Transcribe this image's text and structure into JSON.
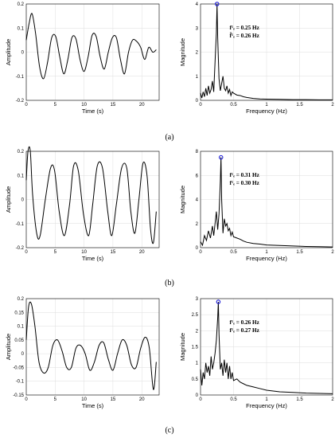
{
  "chart_data": [
    {
      "type": "line",
      "panel": "a-time",
      "xlabel": "Time (s)",
      "ylabel": "Amplitude",
      "xlim": [
        0,
        23
      ],
      "ylim": [
        -0.2,
        0.2
      ],
      "xticks": [
        "0",
        "5",
        "10",
        "15",
        "20"
      ],
      "yticks": [
        "-0.2",
        "-0.1",
        "0",
        "0.1",
        "0.2"
      ],
      "grid": true,
      "x": [
        0,
        0.5,
        1,
        1.6,
        2.3,
        3.0,
        3.7,
        4.4,
        5.1,
        5.8,
        6.5,
        7.2,
        7.9,
        8.6,
        9.3,
        10.0,
        10.7,
        11.4,
        12.1,
        12.8,
        13.5,
        14.2,
        14.9,
        15.6,
        16.3,
        17.0,
        17.7,
        18.4,
        19.1,
        19.8,
        20.5,
        21.2,
        21.9,
        22.5
      ],
      "y": [
        0.05,
        0.12,
        0.16,
        0.08,
        -0.06,
        -0.11,
        -0.04,
        0.06,
        0.065,
        -0.02,
        -0.09,
        -0.03,
        0.06,
        0.055,
        -0.03,
        -0.08,
        -0.02,
        0.07,
        0.065,
        -0.02,
        -0.07,
        0.0,
        0.06,
        0.06,
        -0.03,
        -0.09,
        0.0,
        0.05,
        0.045,
        0.02,
        -0.03,
        0.02,
        0.0,
        0.01
      ]
    },
    {
      "type": "line",
      "panel": "a-freq",
      "xlabel": "Frequency (Hz)",
      "ylabel": "Magnitude",
      "xlim": [
        0,
        2
      ],
      "ylim": [
        0,
        4
      ],
      "xticks": [
        "0",
        "0.5",
        "1",
        "1.5",
        "2"
      ],
      "yticks": [
        "0",
        "1",
        "2",
        "3",
        "4"
      ],
      "grid": true,
      "peak": {
        "x": 0.25,
        "y": 4.0
      },
      "annotations": [
        "f¹ₑ = 0.25 Hz",
        "f̃¹ₑ = 0.26 Hz"
      ],
      "x": [
        0,
        0.02,
        0.04,
        0.06,
        0.08,
        0.1,
        0.12,
        0.14,
        0.16,
        0.18,
        0.2,
        0.22,
        0.24,
        0.25,
        0.26,
        0.28,
        0.3,
        0.32,
        0.34,
        0.36,
        0.38,
        0.4,
        0.42,
        0.44,
        0.46,
        0.48,
        0.5,
        0.55,
        0.6,
        0.65,
        0.7,
        0.8,
        0.9,
        1.0,
        1.2,
        1.4,
        1.6,
        1.8,
        2.0
      ],
      "y": [
        0.3,
        0.1,
        0.35,
        0.15,
        0.5,
        0.2,
        0.6,
        0.3,
        0.45,
        0.8,
        0.35,
        1.6,
        2.8,
        4.0,
        2.6,
        0.9,
        0.4,
        0.7,
        1.0,
        0.5,
        0.4,
        0.6,
        0.3,
        0.45,
        0.2,
        0.35,
        0.3,
        0.22,
        0.2,
        0.15,
        0.12,
        0.08,
        0.06,
        0.05,
        0.04,
        0.03,
        0.03,
        0.02,
        0.02
      ]
    },
    {
      "type": "line",
      "panel": "b-time",
      "xlabel": "Time (s)",
      "ylabel": "Amplitude",
      "xlim": [
        0,
        23
      ],
      "ylim": [
        -0.2,
        0.2
      ],
      "xticks": [
        "0",
        "5",
        "10",
        "15",
        "20"
      ],
      "yticks": [
        "-0.2",
        "-0.1",
        "0",
        "0.1",
        "0.2"
      ],
      "grid": true,
      "x": [
        0,
        0.3,
        0.7,
        1.1,
        1.8,
        2.4,
        3.3,
        4.2,
        4.9,
        5.7,
        6.6,
        7.5,
        8.2,
        9.0,
        9.9,
        10.8,
        11.5,
        12.3,
        13.2,
        14.1,
        14.8,
        15.6,
        16.5,
        17.4,
        18.1,
        18.8,
        19.5,
        20.2,
        20.9,
        21.5,
        22.0,
        22.5
      ],
      "y": [
        0.08,
        0.2,
        0.2,
        0.02,
        -0.14,
        -0.15,
        0.0,
        0.13,
        0.12,
        -0.05,
        -0.15,
        -0.02,
        0.14,
        0.12,
        -0.06,
        -0.15,
        -0.02,
        0.14,
        0.13,
        -0.05,
        -0.15,
        -0.02,
        0.13,
        0.13,
        -0.05,
        -0.14,
        0.0,
        0.15,
        0.1,
        -0.12,
        -0.18,
        -0.05
      ]
    },
    {
      "type": "line",
      "panel": "b-freq",
      "xlabel": "Frequency (Hz)",
      "ylabel": "Magnitude",
      "xlim": [
        0,
        2
      ],
      "ylim": [
        0,
        8
      ],
      "xticks": [
        "0",
        "0.5",
        "1",
        "1.5",
        "2"
      ],
      "yticks": [
        "0",
        "2",
        "4",
        "6",
        "8"
      ],
      "grid": true,
      "peak": {
        "x": 0.31,
        "y": 7.5
      },
      "annotations": [
        "f¹ₑ = 0.31 Hz",
        "f¹ₑ = 0.30 Hz"
      ],
      "x": [
        0,
        0.03,
        0.06,
        0.09,
        0.12,
        0.15,
        0.18,
        0.2,
        0.22,
        0.24,
        0.26,
        0.28,
        0.3,
        0.31,
        0.32,
        0.34,
        0.36,
        0.38,
        0.4,
        0.42,
        0.44,
        0.46,
        0.48,
        0.5,
        0.55,
        0.6,
        0.65,
        0.7,
        0.8,
        0.9,
        1.0,
        1.2,
        1.4,
        1.6,
        1.8,
        2.0
      ],
      "y": [
        0.5,
        0.2,
        1.0,
        0.6,
        1.4,
        0.8,
        1.8,
        1.0,
        2.0,
        3.0,
        1.5,
        2.8,
        5.5,
        7.5,
        4.0,
        1.2,
        2.4,
        1.8,
        2.0,
        1.4,
        1.6,
        1.0,
        1.3,
        0.9,
        0.8,
        0.7,
        0.55,
        0.45,
        0.35,
        0.3,
        0.22,
        0.18,
        0.14,
        0.1,
        0.08,
        0.06
      ]
    },
    {
      "type": "line",
      "panel": "c-time",
      "xlabel": "Time (s)",
      "ylabel": "Amplitude",
      "xlim": [
        0,
        23
      ],
      "ylim": [
        -0.15,
        0.2
      ],
      "xticks": [
        "0",
        "5",
        "10",
        "15",
        "20"
      ],
      "yticks": [
        "-0.15",
        "-0.1",
        "-0.05",
        "0",
        "0.05",
        "0.1",
        "0.15",
        "0.2"
      ],
      "grid": true,
      "x": [
        0,
        0.4,
        0.9,
        1.5,
        2.2,
        3.0,
        3.8,
        4.6,
        5.4,
        6.2,
        7.0,
        7.8,
        8.6,
        9.4,
        10.2,
        11.0,
        11.8,
        12.6,
        13.4,
        14.2,
        15.0,
        15.8,
        16.6,
        17.4,
        18.2,
        19.0,
        19.8,
        20.6,
        21.3,
        22.0,
        22.5
      ],
      "y": [
        0.05,
        0.17,
        0.18,
        0.1,
        -0.03,
        -0.07,
        -0.05,
        0.03,
        0.05,
        0.01,
        -0.05,
        -0.05,
        0.02,
        0.03,
        0.0,
        -0.06,
        -0.03,
        0.03,
        0.04,
        -0.02,
        -0.06,
        0.0,
        0.05,
        0.03,
        -0.04,
        -0.05,
        0.02,
        0.06,
        0.02,
        -0.13,
        -0.03
      ]
    },
    {
      "type": "line",
      "panel": "c-freq",
      "xlabel": "Frequency (Hz)",
      "ylabel": "Magnitude",
      "xlim": [
        0,
        2
      ],
      "ylim": [
        0,
        3
      ],
      "xticks": [
        "0",
        "0.5",
        "1",
        "1.5",
        "2"
      ],
      "yticks": [
        "0",
        "0.5",
        "1",
        "1.5",
        "2",
        "2.5",
        "3"
      ],
      "grid": true,
      "peak": {
        "x": 0.27,
        "y": 2.9
      },
      "annotations": [
        "f¹ₑ = 0.26 Hz",
        "f¹ₑ = 0.27 Hz"
      ],
      "x": [
        0,
        0.02,
        0.04,
        0.06,
        0.08,
        0.1,
        0.12,
        0.14,
        0.16,
        0.18,
        0.2,
        0.22,
        0.24,
        0.26,
        0.27,
        0.28,
        0.3,
        0.32,
        0.34,
        0.36,
        0.38,
        0.4,
        0.42,
        0.44,
        0.46,
        0.48,
        0.5,
        0.55,
        0.6,
        0.65,
        0.7,
        0.8,
        0.9,
        1.0,
        1.2,
        1.4,
        1.6,
        1.8,
        2.0
      ],
      "y": [
        0.8,
        0.3,
        0.7,
        0.5,
        1.0,
        0.7,
        0.9,
        0.6,
        1.2,
        0.8,
        1.0,
        1.3,
        1.7,
        2.4,
        2.9,
        1.9,
        0.8,
        1.0,
        0.6,
        1.1,
        0.7,
        1.0,
        0.5,
        0.9,
        0.5,
        0.7,
        0.45,
        0.5,
        0.4,
        0.35,
        0.3,
        0.25,
        0.2,
        0.15,
        0.1,
        0.08,
        0.06,
        0.05,
        0.04
      ]
    }
  ],
  "captions": [
    "(a)",
    "(b)",
    "(c)"
  ]
}
